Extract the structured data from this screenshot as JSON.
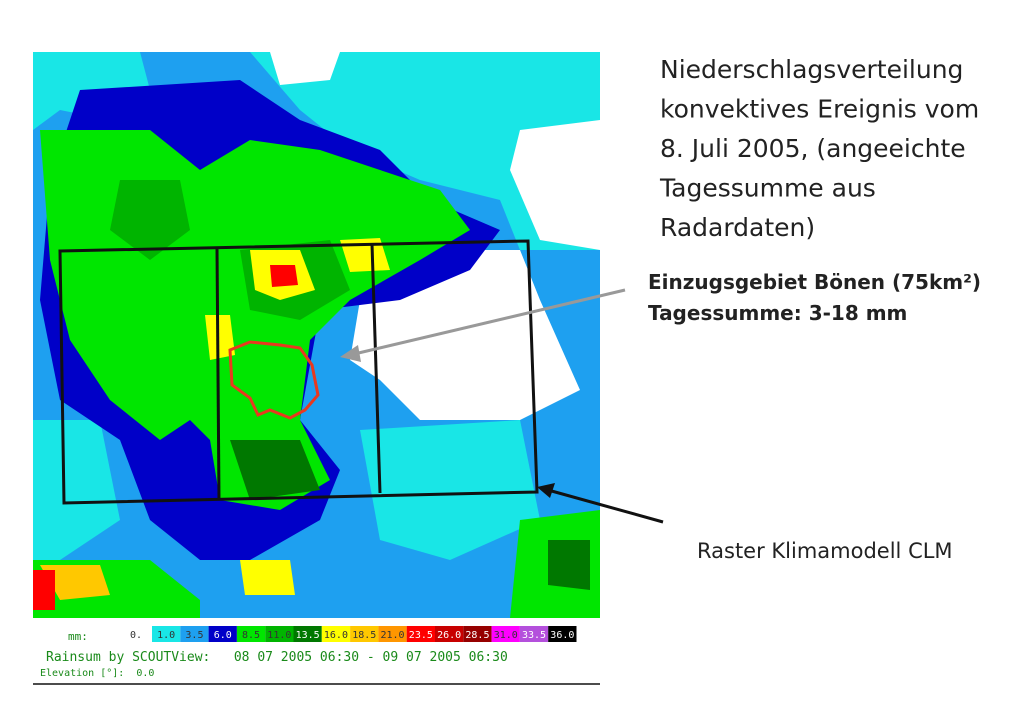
{
  "title_lines": [
    "Niederschlagsverteilung",
    "konvektives Ereignis vom",
    "8. Juli 2005, (angeeichte",
    "Tagessumme aus",
    "Radardaten)"
  ],
  "annotation_lines": [
    "Einzugsgebiet Bönen (75km²)",
    "Tagessumme: 3-18 mm"
  ],
  "raster_label": "Raster Klimamodell CLM",
  "legend": {
    "unit": "mm:",
    "zero": "0.",
    "items": [
      {
        "label": "1.0",
        "color": "#19e6e6"
      },
      {
        "label": "3.5",
        "color": "#1ea0f0"
      },
      {
        "label": "6.0",
        "color": "#0000c8"
      },
      {
        "label": "8.5",
        "color": "#00e600"
      },
      {
        "label": "11.0",
        "color": "#00b400"
      },
      {
        "label": "13.5",
        "color": "#007800"
      },
      {
        "label": "16.0",
        "color": "#ffff00"
      },
      {
        "label": "18.5",
        "color": "#ffc800"
      },
      {
        "label": "21.0",
        "color": "#ff9600"
      },
      {
        "label": "23.5",
        "color": "#ff0000"
      },
      {
        "label": "26.0",
        "color": "#c80000"
      },
      {
        "label": "28.5",
        "color": "#960000"
      },
      {
        "label": "31.0",
        "color": "#ff00ff"
      },
      {
        "label": "33.5",
        "color": "#b450dc"
      },
      {
        "label": "36.0",
        "color": "#000000"
      }
    ]
  },
  "rainsum_line": "Rainsum by SCOUTView:   08 07 2005 06:30 - 09 07 2005 06:30",
  "elevation_line": "Elevation [°]:  0.0"
}
